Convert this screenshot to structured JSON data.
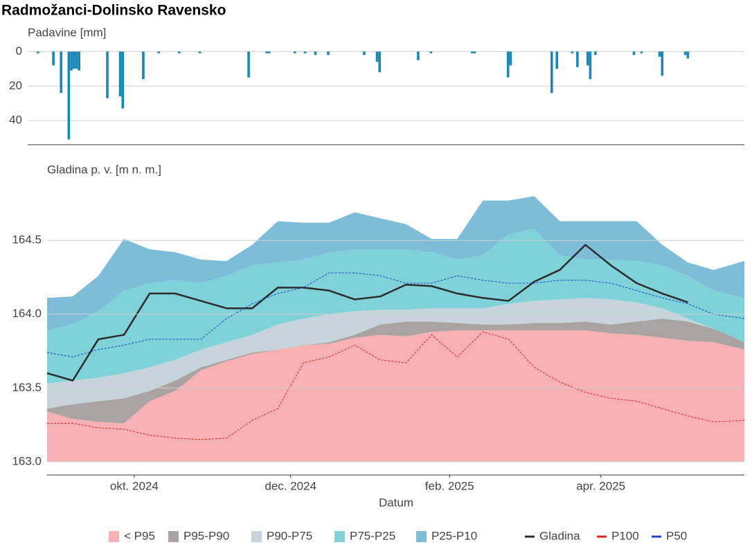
{
  "title": "Radmožanci-Dolinsko Ravensko",
  "chart_data": [
    {
      "type": "bar",
      "y_label": "Padavine [mm]",
      "color": "#1b87b8",
      "x": [
        "2024-08-25",
        "2024-08-31",
        "2024-09-03",
        "2024-09-06",
        "2024-09-07",
        "2024-09-08",
        "2024-09-09",
        "2024-09-10",
        "2024-09-21",
        "2024-09-26",
        "2024-09-27",
        "2024-10-05",
        "2024-10-11",
        "2024-10-19",
        "2024-10-27",
        "2024-11-15",
        "2024-11-22",
        "2024-11-23",
        "2024-12-03",
        "2024-12-07",
        "2024-12-11",
        "2024-12-16",
        "2024-12-30",
        "2025-01-04",
        "2025-01-05",
        "2025-01-20",
        "2025-01-25",
        "2025-02-10",
        "2025-02-11",
        "2025-02-24",
        "2025-02-25",
        "2025-03-13",
        "2025-03-15",
        "2025-03-21",
        "2025-03-23",
        "2025-03-27",
        "2025-03-28",
        "2025-03-30",
        "2025-04-14",
        "2025-04-17",
        "2025-04-24",
        "2025-04-25",
        "2025-05-04",
        "2025-05-05"
      ],
      "values": [
        1,
        8,
        24,
        51,
        11,
        10,
        10,
        11,
        27,
        26,
        33,
        16,
        1,
        1,
        1,
        15,
        1,
        1,
        1,
        1,
        2,
        2,
        2,
        6,
        12,
        5,
        1,
        1,
        1,
        15,
        8,
        24,
        10,
        1,
        9,
        8,
        16,
        2,
        2,
        1,
        3,
        14,
        2,
        4
      ],
      "xlim": [
        "2024-08-21",
        "2025-05-27"
      ],
      "ylim": [
        -5,
        54
      ],
      "y_inverted": true,
      "yticks": [
        0,
        20,
        40
      ],
      "grid": true
    },
    {
      "type": "area",
      "y_label": "Gladina p. v. [m n. m.]",
      "x_label": "Datum",
      "x": [
        "2024-08-28",
        "2024-09-07",
        "2024-09-17",
        "2024-09-27",
        "2024-10-07",
        "2024-10-17",
        "2024-10-27",
        "2024-11-06",
        "2024-11-16",
        "2024-11-26",
        "2024-12-06",
        "2024-12-16",
        "2024-12-26",
        "2025-01-05",
        "2025-01-15",
        "2025-01-25",
        "2025-02-04",
        "2025-02-14",
        "2025-02-24",
        "2025-03-06",
        "2025-03-16",
        "2025-03-26",
        "2025-04-05",
        "2025-04-15",
        "2025-04-25",
        "2025-05-05",
        "2025-05-15",
        "2025-05-27"
      ],
      "band_floor": 163,
      "series": [
        {
          "name": "< P95",
          "style": "band",
          "color": "#f7b1b5",
          "values": [
            163.34,
            163.29,
            163.27,
            163.26,
            163.41,
            163.48,
            163.62,
            163.68,
            163.73,
            163.76,
            163.79,
            163.8,
            163.84,
            163.86,
            163.85,
            163.88,
            163.89,
            163.89,
            163.89,
            163.89,
            163.89,
            163.89,
            163.87,
            163.86,
            163.84,
            163.82,
            163.81,
            163.76
          ]
        },
        {
          "name": "P95-P90",
          "style": "band",
          "color": "#aaa3a1",
          "values": [
            163.36,
            163.39,
            163.41,
            163.43,
            163.48,
            163.55,
            163.64,
            163.69,
            163.74,
            163.76,
            163.79,
            163.81,
            163.86,
            163.93,
            163.95,
            163.95,
            163.94,
            163.93,
            163.93,
            163.94,
            163.94,
            163.95,
            163.93,
            163.95,
            163.97,
            163.95,
            163.9,
            163.83
          ]
        },
        {
          "name": "P90-P75",
          "style": "band",
          "color": "#c6d4db",
          "values": [
            163.53,
            163.55,
            163.57,
            163.6,
            163.64,
            163.69,
            163.76,
            163.81,
            163.86,
            163.93,
            163.97,
            164,
            164.02,
            164.03,
            164.03,
            164.04,
            164.04,
            164.04,
            164.07,
            164.09,
            164.1,
            164.11,
            164.1,
            164.08,
            164.04,
            163.97,
            163.9,
            163.81
          ]
        },
        {
          "name": "P75-P25",
          "style": "band",
          "color": "#7fd2d8",
          "values": [
            163.89,
            163.93,
            164.02,
            164.16,
            164.21,
            164.23,
            164.21,
            164.26,
            164.33,
            164.35,
            164.37,
            164.42,
            164.44,
            164.44,
            164.44,
            164.42,
            164.37,
            164.4,
            164.54,
            164.58,
            164.4,
            164.37,
            164.37,
            164.36,
            164.33,
            164.26,
            164.16,
            164.11
          ]
        },
        {
          "name": "P25-P10",
          "style": "band",
          "color": "#7dbdd9",
          "values": [
            164.11,
            164.12,
            164.26,
            164.51,
            164.44,
            164.42,
            164.37,
            164.36,
            164.47,
            164.63,
            164.62,
            164.62,
            164.69,
            164.65,
            164.61,
            164.51,
            164.51,
            164.77,
            164.77,
            164.8,
            164.63,
            164.63,
            164.63,
            164.63,
            164.47,
            164.35,
            164.3,
            164.36
          ]
        },
        {
          "name": "Gladina",
          "style": "line",
          "color": "#2b2b2b",
          "width": 2.5,
          "values": [
            163.6,
            163.55,
            163.83,
            163.86,
            164.14,
            164.14,
            164.09,
            164.04,
            164.04,
            164.18,
            164.18,
            164.16,
            164.1,
            164.12,
            164.2,
            164.19,
            164.14,
            164.11,
            164.09,
            164.22,
            164.3,
            164.47,
            164.33,
            164.21,
            164.14,
            164.08,
            null,
            null
          ]
        },
        {
          "name": "P100",
          "style": "line",
          "dashed": true,
          "color": "#e3201b",
          "width": 1,
          "values": [
            163.26,
            163.26,
            163.23,
            163.22,
            163.18,
            163.16,
            163.15,
            163.16,
            163.28,
            163.36,
            163.67,
            163.71,
            163.79,
            163.69,
            163.67,
            163.86,
            163.71,
            163.88,
            163.83,
            163.64,
            163.54,
            163.47,
            163.43,
            163.41,
            163.36,
            163.31,
            163.27,
            163.28
          ]
        },
        {
          "name": "P50",
          "style": "line",
          "dashed": true,
          "color": "#1f3fd6",
          "width": 1,
          "values": [
            163.74,
            163.71,
            163.76,
            163.79,
            163.83,
            163.83,
            163.83,
            163.97,
            164.07,
            164.14,
            164.18,
            164.28,
            164.28,
            164.26,
            164.21,
            164.21,
            164.26,
            164.23,
            164.21,
            164.21,
            164.23,
            164.23,
            164.21,
            164.16,
            164.11,
            164.07,
            164,
            163.97
          ]
        }
      ],
      "xlim": [
        "2024-08-28",
        "2025-05-27"
      ],
      "ylim": [
        162.91,
        165.05
      ],
      "yticks": [
        {
          "value": 163,
          "label": "163.0"
        },
        163.5,
        {
          "value": 164,
          "label": "164.0"
        },
        164.5
      ],
      "xticks": [
        {
          "value": "2024-10-01",
          "label": "okt. 2024"
        },
        {
          "value": "2024-12-01",
          "label": "dec. 2024"
        },
        {
          "value": "2025-02-01",
          "label": "feb. 2025"
        },
        {
          "value": "2025-04-01",
          "label": "apr. 2025"
        }
      ],
      "grid": true
    }
  ]
}
